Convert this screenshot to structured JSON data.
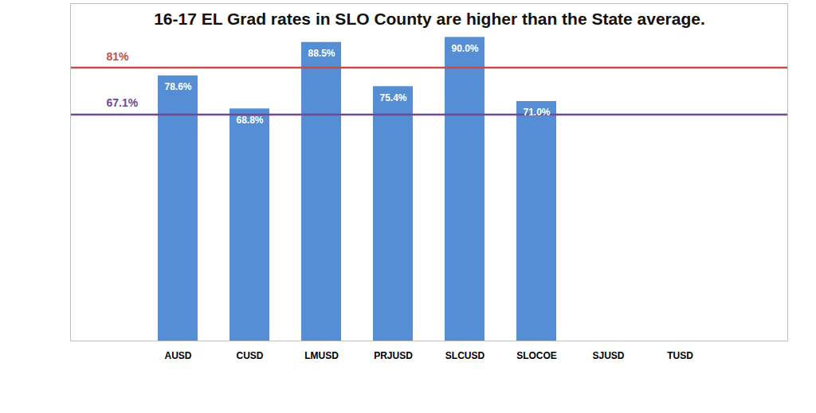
{
  "chart_data": {
    "type": "bar",
    "title": "16-17 EL Grad rates in SLO County are higher than the State average.",
    "categories": [
      "AUSD",
      "CUSD",
      "LMUSD",
      "PRJUSD",
      "SLCUSD",
      "SLOCOE",
      "SJUSD",
      "TUSD"
    ],
    "values": [
      78.6,
      68.8,
      88.5,
      75.4,
      90.0,
      71.0,
      null,
      null
    ],
    "value_labels": [
      "78.6%",
      "68.8%",
      "88.5%",
      "75.4%",
      "90.0%",
      "71.0%",
      null,
      null
    ],
    "color": "#558ed5",
    "ylim": [
      0,
      100
    ],
    "yticks": [],
    "tick_labels": "x",
    "grid": false,
    "data_labels": true,
    "reference_lines": [
      {
        "value": 81,
        "label": "81%",
        "color": "#c0504d"
      },
      {
        "value": 67.1,
        "label": "67.1%",
        "color": "#6f4a93"
      }
    ]
  }
}
